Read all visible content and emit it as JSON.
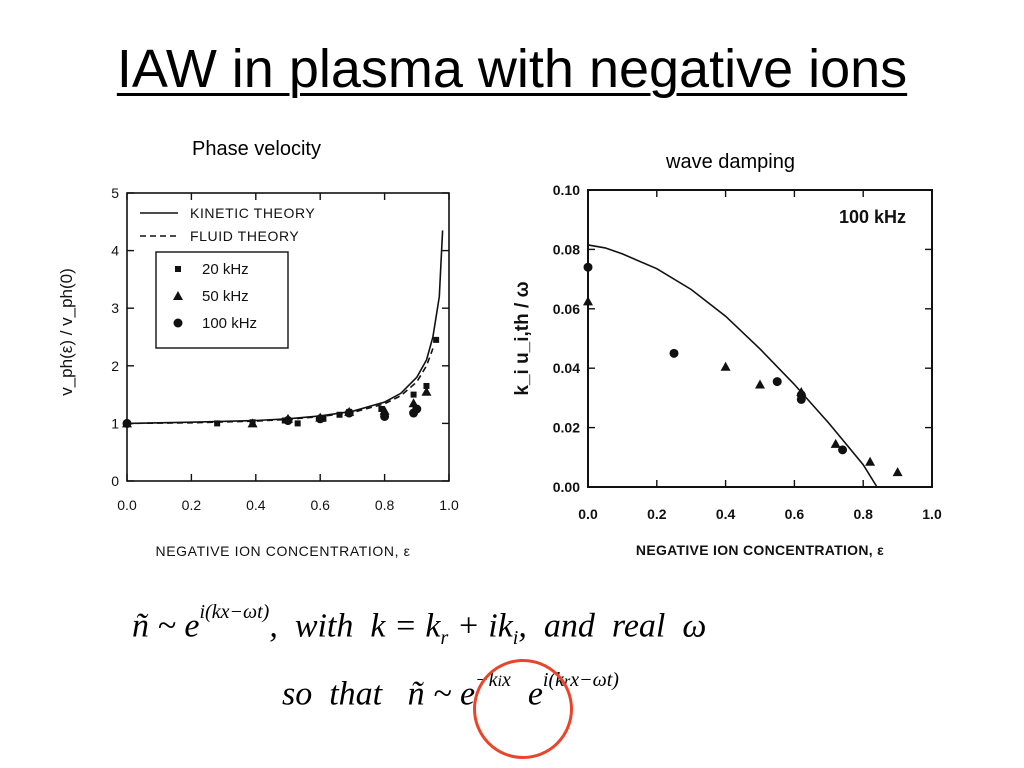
{
  "slide": {
    "title": "IAW in plasma with negative ions",
    "caption_left": "Phase velocity",
    "caption_right": "wave damping",
    "equation_line1": "ñ ~ e^{i(kx−ωt)}, with k = k_r + ik_i, and real ω",
    "equation_line2": "so that ñ ~ e^{−k_i x} e^{i(k_r x−ωt)}",
    "highlight_color": "#e8452a"
  },
  "chart_data": [
    {
      "type": "scatter",
      "title": "",
      "xlabel": "NEGATIVE ION CONCENTRATION, ε",
      "ylabel": "v_ph(ε) / v_ph(0)",
      "xlim": [
        0,
        1.0
      ],
      "ylim": [
        0,
        5
      ],
      "xticks": [
        "0.0",
        "0.2",
        "0.4",
        "0.6",
        "0.8",
        "1.0"
      ],
      "yticks": [
        "0",
        "1",
        "2",
        "3",
        "4",
        "5"
      ],
      "legend": {
        "placement": "top-left",
        "lines": [
          "KINETIC THEORY",
          "FLUID THEORY"
        ],
        "markers": [
          "20 kHz",
          "50 kHz",
          "100 kHz"
        ]
      },
      "series": [
        {
          "name": "KINETIC THEORY",
          "kind": "line-solid",
          "x": [
            0,
            0.2,
            0.4,
            0.5,
            0.6,
            0.7,
            0.8,
            0.85,
            0.9,
            0.93,
            0.95,
            0.97,
            0.98
          ],
          "y": [
            1.0,
            1.02,
            1.05,
            1.08,
            1.13,
            1.21,
            1.37,
            1.52,
            1.8,
            2.1,
            2.5,
            3.2,
            4.35
          ]
        },
        {
          "name": "FLUID THEORY",
          "kind": "line-dashed",
          "x": [
            0,
            0.2,
            0.4,
            0.5,
            0.6,
            0.7,
            0.8,
            0.85,
            0.9,
            0.93,
            0.95
          ],
          "y": [
            1.0,
            1.01,
            1.04,
            1.07,
            1.12,
            1.19,
            1.34,
            1.48,
            1.72,
            2.0,
            2.3
          ]
        },
        {
          "name": "20 kHz",
          "kind": "square",
          "x": [
            0,
            0.28,
            0.39,
            0.49,
            0.53,
            0.61,
            0.66,
            0.69,
            0.79,
            0.89,
            0.93,
            0.96
          ],
          "y": [
            1.0,
            1.0,
            1.02,
            1.05,
            1.0,
            1.08,
            1.15,
            1.2,
            1.25,
            1.5,
            1.65,
            2.45
          ]
        },
        {
          "name": "50 kHz",
          "kind": "triangle",
          "x": [
            0,
            0.39,
            0.5,
            0.6,
            0.69,
            0.8,
            0.89,
            0.93
          ],
          "y": [
            1.0,
            1.0,
            1.08,
            1.1,
            1.2,
            1.22,
            1.35,
            1.55
          ]
        },
        {
          "name": "100 kHz",
          "kind": "circle",
          "x": [
            0,
            0.5,
            0.6,
            0.69,
            0.8,
            0.89,
            0.9
          ],
          "y": [
            1.0,
            1.05,
            1.08,
            1.18,
            1.12,
            1.18,
            1.25
          ]
        }
      ]
    },
    {
      "type": "scatter",
      "title": "",
      "annotation": "100 kHz",
      "xlabel": "NEGATIVE ION CONCENTRATION, ε",
      "ylabel": "k_i u_i,th / ω",
      "xlim": [
        0,
        1.0
      ],
      "ylim": [
        0,
        0.1
      ],
      "xticks": [
        "0.0",
        "0.2",
        "0.4",
        "0.6",
        "0.8",
        "1.0"
      ],
      "yticks": [
        "0.00",
        "0.02",
        "0.04",
        "0.06",
        "0.08",
        "0.10"
      ],
      "series": [
        {
          "name": "theory",
          "kind": "line-solid",
          "x": [
            0,
            0.05,
            0.1,
            0.2,
            0.3,
            0.4,
            0.5,
            0.6,
            0.7,
            0.75,
            0.8,
            0.84
          ],
          "y": [
            0.0815,
            0.0805,
            0.0785,
            0.0735,
            0.0665,
            0.0575,
            0.0465,
            0.0345,
            0.0215,
            0.0145,
            0.0075,
            0.0
          ]
        },
        {
          "name": "",
          "kind": "circle",
          "x": [
            0,
            0.25,
            0.55,
            0.62,
            0.62,
            0.74
          ],
          "y": [
            0.074,
            0.045,
            0.0355,
            0.031,
            0.0295,
            0.0125
          ]
        },
        {
          "name": "",
          "kind": "triangle",
          "x": [
            0,
            0.4,
            0.5,
            0.62,
            0.72,
            0.82,
            0.9
          ],
          "y": [
            0.0625,
            0.0405,
            0.0345,
            0.032,
            0.0145,
            0.0085,
            0.005
          ]
        }
      ]
    }
  ]
}
